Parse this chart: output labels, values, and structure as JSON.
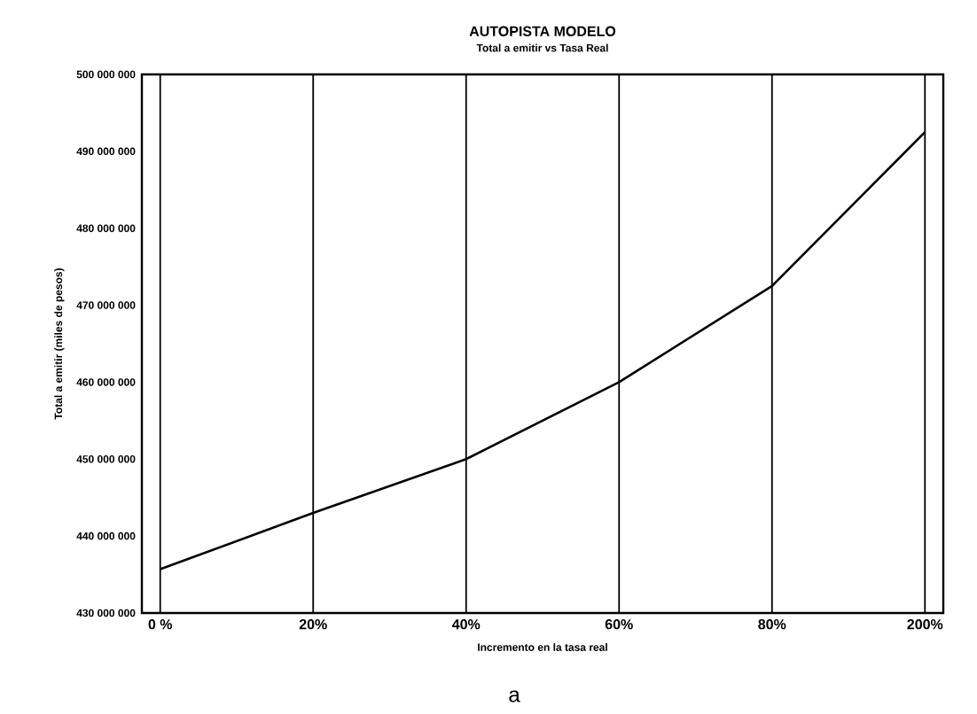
{
  "chart_data": {
    "type": "line",
    "title": "AUTOPISTA MODELO",
    "subtitle": "Total a emitir vs Tasa Real",
    "xlabel": "Incremento en la tasa real",
    "ylabel": "Total a emitir (miles de pesos)",
    "categories": [
      "0 %",
      "20%",
      "40%",
      "60%",
      "80%",
      "200%"
    ],
    "values": [
      435700000,
      443000000,
      450000000,
      460000000,
      472500000,
      492500000
    ],
    "color": "#000000",
    "ylim": [
      430000000,
      500000000
    ],
    "yticks": [
      {
        "value": 430000000,
        "label": "430 000 000"
      },
      {
        "value": 440000000,
        "label": "440 000 000"
      },
      {
        "value": 450000000,
        "label": "450 000 000"
      },
      {
        "value": 460000000,
        "label": "460 000 000"
      },
      {
        "value": 470000000,
        "label": "470 000 000"
      },
      {
        "value": 480000000,
        "label": "480 000 000"
      },
      {
        "value": 490000000,
        "label": "490 000 000"
      },
      {
        "value": 500000000,
        "label": "500 000 000"
      }
    ],
    "grid": "x",
    "annotations": [
      "a"
    ]
  }
}
